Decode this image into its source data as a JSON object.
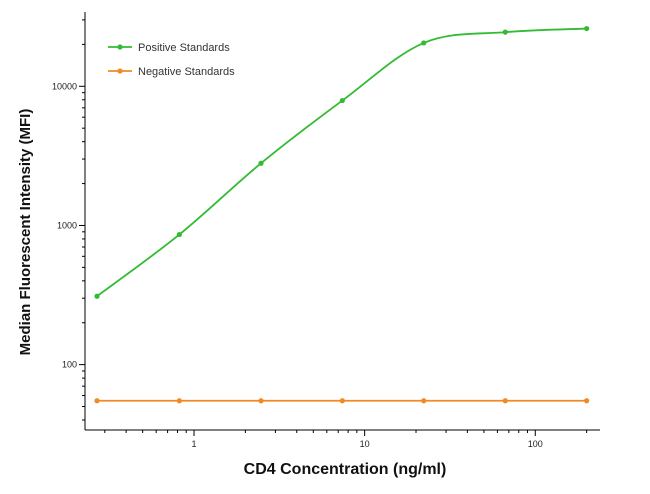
{
  "chart_data": {
    "type": "line",
    "title": "",
    "xlabel": "CD4 Concentration (ng/ml)",
    "ylabel": "Median  Fluorescent Intensity  (MFI)",
    "xscale": "log",
    "yscale": "log",
    "xlim": [
      0.27,
      215
    ],
    "ylim": [
      40,
      32000
    ],
    "x_ticks": [
      1,
      10,
      100
    ],
    "x_tick_labels": [
      "1",
      "10",
      "100"
    ],
    "y_ticks": [
      100,
      1000,
      10000
    ],
    "y_tick_labels": [
      "100",
      "1000",
      "10000"
    ],
    "grid": false,
    "legend_position": "top-left",
    "x": [
      0.27,
      0.82,
      2.47,
      7.4,
      22.2,
      66.7,
      200
    ],
    "series": [
      {
        "name": "Positive Standards",
        "color": "#33bb33",
        "values": [
          310,
          860,
          2800,
          7900,
          20500,
          24500,
          26000
        ]
      },
      {
        "name": "Negative Standards",
        "color": "#f08a24",
        "values": [
          55,
          55,
          55,
          55,
          55,
          55,
          55
        ]
      }
    ]
  }
}
